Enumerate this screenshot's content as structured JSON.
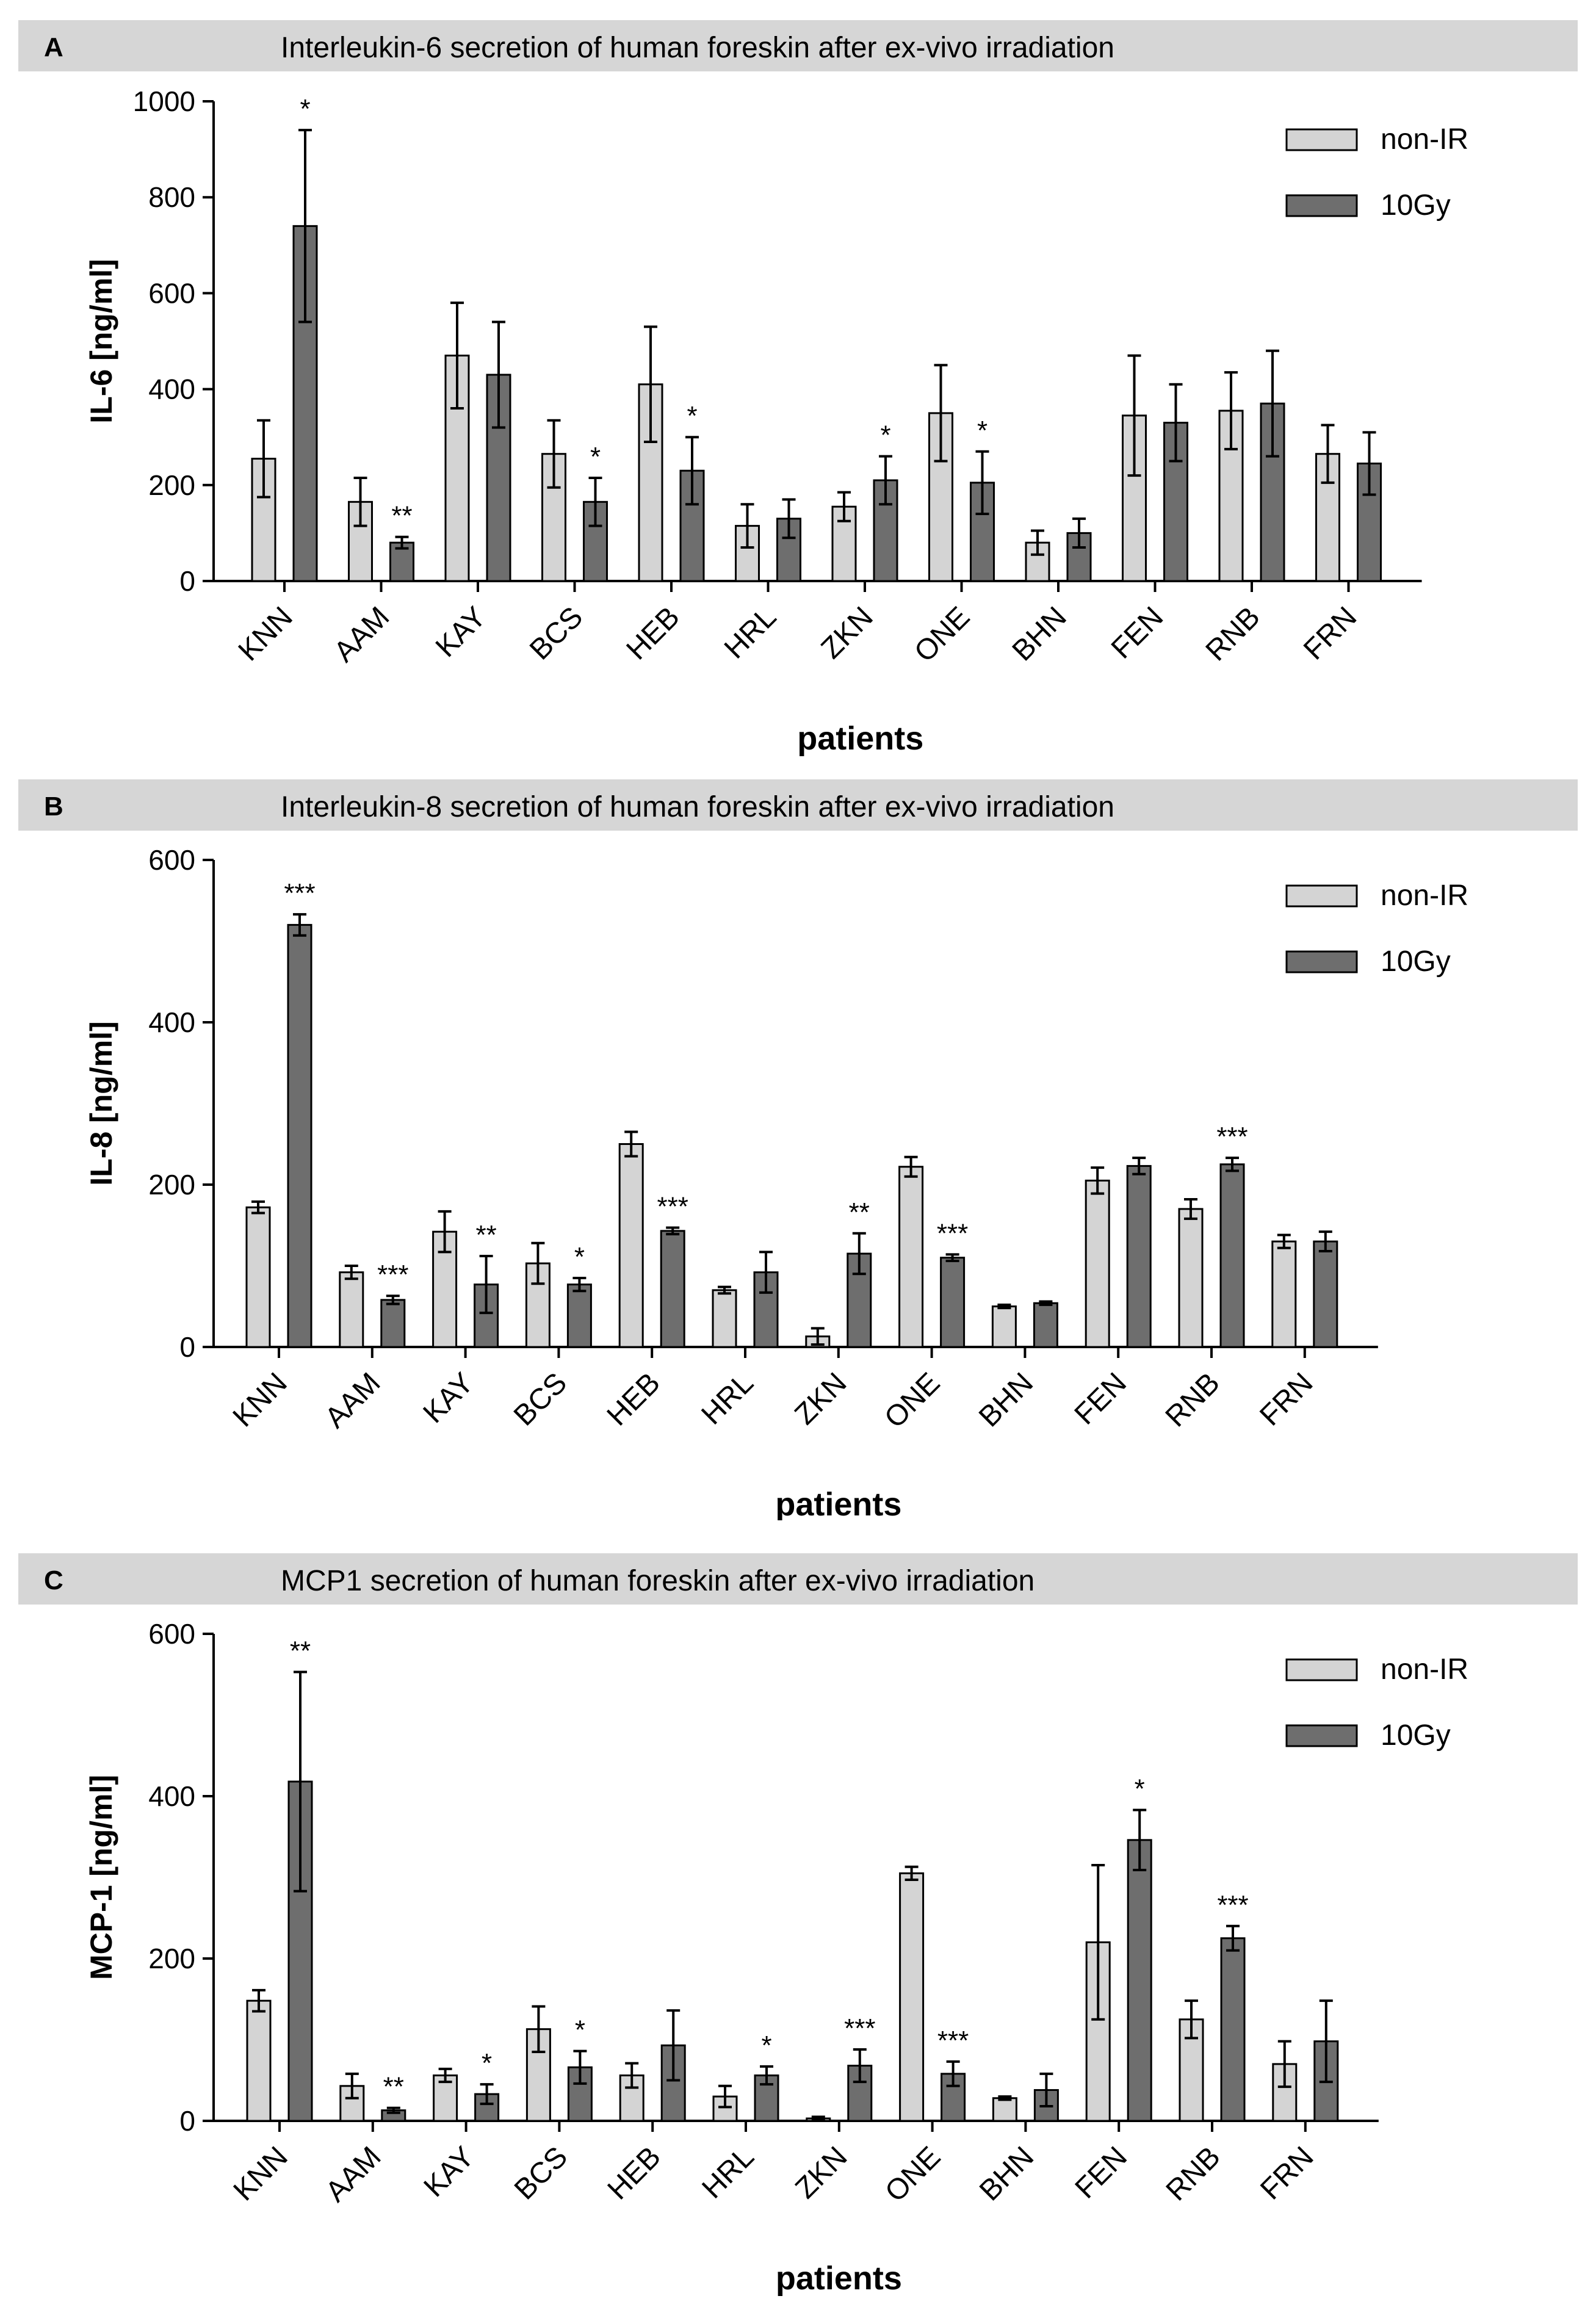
{
  "colors": {
    "non_ir": "#d4d4d4",
    "gy10": "#6e6e6e",
    "header_bg": "#d6d6d6",
    "axis": "#000000"
  },
  "chart_data": [
    {
      "type": "bar",
      "panel_letter": "A",
      "title": "Interleukin-6 secretion of human foreskin after ex-vivo irradiation",
      "ylabel": "IL-6 [ng/ml]",
      "xlabel": "patients",
      "ylim": [
        0,
        1000
      ],
      "yticks": [
        "0",
        "200",
        "400",
        "600",
        "800",
        "1000"
      ],
      "categories": [
        "KNN",
        "AAM",
        "KAY",
        "BCS",
        "HEB",
        "HRL",
        "ZKN",
        "ONE",
        "BHN",
        "FEN",
        "RNB",
        "FRN"
      ],
      "legend": [
        "non-IR",
        "10Gy"
      ],
      "legend_position": "top-right",
      "series": [
        {
          "name": "non-IR",
          "values": [
            255,
            165,
            470,
            265,
            410,
            115,
            155,
            350,
            80,
            345,
            355,
            265
          ],
          "errors": [
            80,
            50,
            110,
            70,
            120,
            45,
            30,
            100,
            25,
            125,
            80,
            60
          ]
        },
        {
          "name": "10Gy",
          "values": [
            740,
            80,
            430,
            165,
            230,
            130,
            210,
            205,
            100,
            330,
            370,
            245
          ],
          "errors": [
            200,
            12,
            110,
            50,
            70,
            40,
            50,
            65,
            30,
            80,
            110,
            65
          ]
        }
      ],
      "significance": [
        "*",
        "**",
        "",
        "*",
        "*",
        "",
        "*",
        "*",
        "",
        "",
        "",
        ""
      ]
    },
    {
      "type": "bar",
      "panel_letter": "B",
      "title": "Interleukin-8 secretion of human foreskin after ex-vivo irradiation",
      "ylabel": "IL-8 [ng/ml]",
      "xlabel": "patients",
      "ylim": [
        0,
        600
      ],
      "yticks": [
        "0",
        "200",
        "400",
        "600"
      ],
      "categories": [
        "KNN",
        "AAM",
        "KAY",
        "BCS",
        "HEB",
        "HRL",
        "ZKN",
        "ONE",
        "BHN",
        "FEN",
        "RNB",
        "FRN"
      ],
      "legend": [
        "non-IR",
        "10Gy"
      ],
      "legend_position": "top-right",
      "series": [
        {
          "name": "non-IR",
          "values": [
            172,
            92,
            142,
            103,
            250,
            70,
            13,
            222,
            50,
            205,
            170,
            130
          ],
          "errors": [
            7,
            8,
            25,
            25,
            15,
            4,
            10,
            12,
            2,
            16,
            12,
            8
          ]
        },
        {
          "name": "10Gy",
          "values": [
            520,
            58,
            77,
            77,
            143,
            92,
            115,
            110,
            54,
            223,
            225,
            130
          ],
          "errors": [
            13,
            5,
            35,
            8,
            4,
            25,
            25,
            4,
            2,
            10,
            8,
            12
          ]
        }
      ],
      "significance": [
        "***",
        "***",
        "**",
        "*",
        "***",
        "",
        "**",
        "***",
        "",
        "",
        "***",
        ""
      ]
    },
    {
      "type": "bar",
      "panel_letter": "C",
      "title": "MCP1 secretion of human foreskin after ex-vivo irradiation",
      "ylabel": "MCP-1 [ng/ml]",
      "xlabel": "patients",
      "ylim": [
        0,
        600
      ],
      "yticks": [
        "0",
        "200",
        "400",
        "600"
      ],
      "categories": [
        "KNN",
        "AAM",
        "KAY",
        "BCS",
        "HEB",
        "HRL",
        "ZKN",
        "ONE",
        "BHN",
        "FEN",
        "RNB",
        "FRN"
      ],
      "legend": [
        "non-IR",
        "10Gy"
      ],
      "legend_position": "top-right",
      "series": [
        {
          "name": "non-IR",
          "values": [
            148,
            43,
            56,
            113,
            56,
            30,
            3,
            305,
            28,
            220,
            125,
            70
          ],
          "errors": [
            13,
            15,
            8,
            28,
            15,
            13,
            2,
            8,
            2,
            95,
            23,
            28
          ]
        },
        {
          "name": "10Gy",
          "values": [
            418,
            13,
            33,
            66,
            93,
            56,
            68,
            58,
            38,
            346,
            225,
            98
          ],
          "errors": [
            135,
            3,
            12,
            20,
            43,
            11,
            20,
            15,
            20,
            37,
            15,
            50
          ]
        }
      ],
      "significance": [
        "**",
        "**",
        "*",
        "*",
        "",
        "*",
        "***",
        "***",
        "",
        "*",
        "***",
        ""
      ]
    }
  ]
}
